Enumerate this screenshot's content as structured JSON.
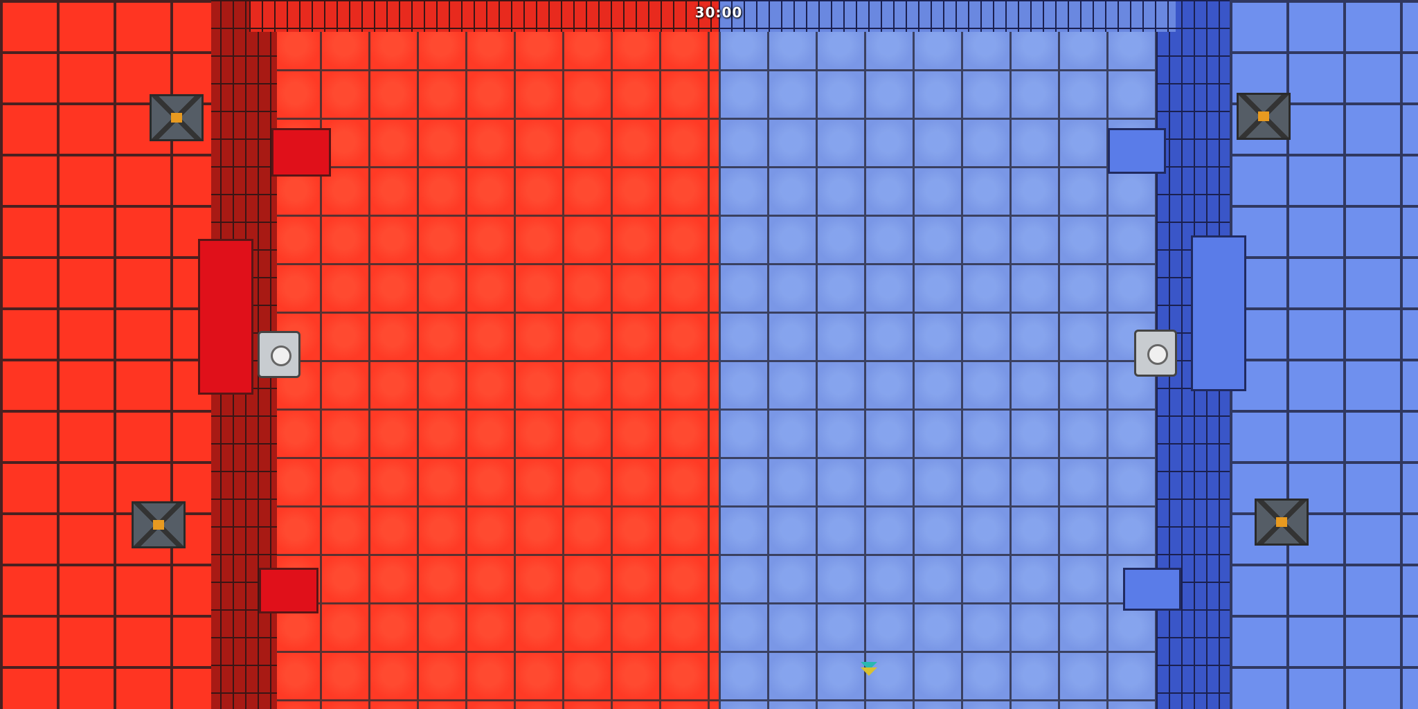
{
  "hud": {
    "timer": "30:00"
  }
}
